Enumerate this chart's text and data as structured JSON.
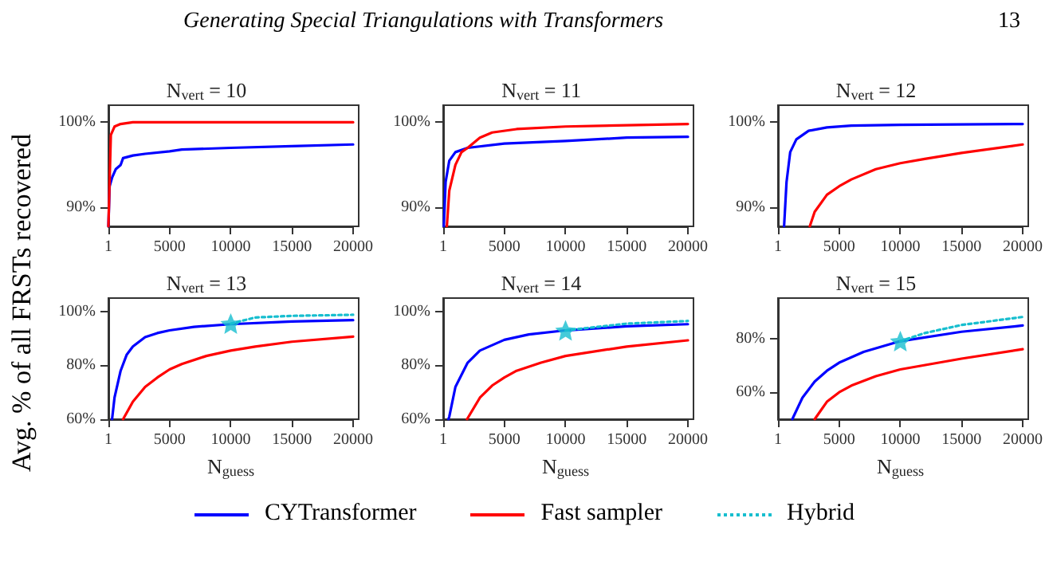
{
  "chart_data": [
    {
      "type": "line",
      "title": "N$_{vert}$ = 10",
      "ylabel": "Avg. % of all FRSTs recovered",
      "annotations": [
        "Generating Special Triangulations with Transformers",
        "13"
      ],
      "legend": "bottom",
      "marker": "none",
      "grid": false,
      "xlim": [
        1,
        20000
      ],
      "xticks": [
        1,
        5000,
        10000,
        15000,
        20000
      ],
      "ylim": [
        87.8,
        102
      ],
      "yticks": [
        {
          "value": 90,
          "label": "90%"
        },
        {
          "value": 100,
          "label": "100%"
        }
      ],
      "series": [
        {
          "name": "CYTransformer",
          "color": "#0000ff",
          "x": [
            1,
            100,
            300,
            600,
            1000,
            1200,
            2000,
            3000,
            5000,
            6000,
            10000,
            15000,
            20000
          ],
          "values": [
            87.8,
            92.5,
            93.5,
            94.5,
            95,
            95.8,
            96.1,
            96.3,
            96.6,
            96.8,
            97,
            97.2,
            97.4
          ]
        },
        {
          "name": "Fast sampler",
          "color": "#ff0000",
          "x": [
            1,
            200,
            500,
            1000,
            2000,
            5000,
            10000,
            20000
          ],
          "values": [
            87.8,
            98.5,
            99.5,
            99.8,
            100,
            100,
            100,
            100
          ]
        }
      ]
    },
    {
      "type": "line",
      "title": "N$_{vert}$ = 11",
      "marker": "none",
      "grid": false,
      "xlim": [
        1,
        20000
      ],
      "xticks": [
        1,
        5000,
        10000,
        15000,
        20000
      ],
      "ylim": [
        87.8,
        102
      ],
      "yticks": [
        {
          "value": 90,
          "label": "90%"
        },
        {
          "value": 100,
          "label": "100%"
        }
      ],
      "series": [
        {
          "name": "CYTransformer",
          "color": "#0000ff",
          "x": [
            50,
            200,
            500,
            1000,
            2000,
            5000,
            10000,
            15000,
            20000
          ],
          "values": [
            87.8,
            93,
            95.5,
            96.5,
            97,
            97.5,
            97.8,
            98.2,
            98.3
          ]
        },
        {
          "name": "Fast sampler",
          "color": "#ff0000",
          "x": [
            300,
            500,
            1000,
            1500,
            2000,
            3000,
            4000,
            6000,
            10000,
            20000
          ],
          "values": [
            87.8,
            92,
            95,
            96.5,
            97,
            98.2,
            98.8,
            99.2,
            99.5,
            99.8
          ]
        }
      ]
    },
    {
      "type": "line",
      "title": "N$_{vert}$ = 12",
      "marker": "none",
      "grid": false,
      "xlim": [
        1,
        20000
      ],
      "xticks": [
        1,
        5000,
        10000,
        15000,
        20000
      ],
      "ylim": [
        87.8,
        102
      ],
      "yticks": [
        {
          "value": 90,
          "label": "90%"
        },
        {
          "value": 100,
          "label": "100%"
        }
      ],
      "series": [
        {
          "name": "CYTransformer",
          "color": "#0000ff",
          "x": [
            500,
            700,
            1000,
            1500,
            2500,
            4000,
            6000,
            10000,
            20000
          ],
          "values": [
            87.8,
            93,
            96.5,
            98,
            99,
            99.4,
            99.6,
            99.7,
            99.8
          ]
        },
        {
          "name": "Fast sampler",
          "color": "#ff0000",
          "x": [
            2600,
            3000,
            4000,
            5000,
            6000,
            8000,
            10000,
            12000,
            15000,
            20000
          ],
          "values": [
            87.8,
            89.5,
            91.5,
            92.5,
            93.3,
            94.5,
            95.2,
            95.7,
            96.4,
            97.4
          ]
        }
      ]
    },
    {
      "type": "line",
      "title": "N$_{vert}$ = 13",
      "xlabel": "N$_{guess}$",
      "marker": "none",
      "grid": false,
      "xlim": [
        1,
        20000
      ],
      "xticks": [
        1,
        5000,
        10000,
        15000,
        20000
      ],
      "ylim": [
        60,
        105
      ],
      "yticks": [
        {
          "value": 60,
          "label": "60%"
        },
        {
          "value": 80,
          "label": "80%"
        },
        {
          "value": 100,
          "label": "100%"
        }
      ],
      "series": [
        {
          "name": "CYTransformer",
          "color": "#0000ff",
          "x": [
            300,
            500,
            1000,
            1500,
            2000,
            3000,
            4000,
            5000,
            7000,
            10000,
            15000,
            20000
          ],
          "values": [
            60,
            68,
            78,
            84,
            87,
            90.5,
            92,
            93,
            94.3,
            95.3,
            96.3,
            96.8
          ]
        },
        {
          "name": "Fast sampler",
          "color": "#ff0000",
          "x": [
            1200,
            2000,
            3000,
            4000,
            5000,
            6000,
            8000,
            10000,
            12000,
            15000,
            20000
          ],
          "values": [
            60,
            66.5,
            72,
            75.5,
            78.5,
            80.5,
            83.5,
            85.5,
            87,
            88.8,
            90.7
          ]
        },
        {
          "name": "Hybrid",
          "color": "#17becf",
          "line_style": "dotted",
          "x": [
            10000,
            12000,
            15000,
            20000
          ],
          "values": [
            95.5,
            97.8,
            98.4,
            98.8
          ]
        },
        {
          "type": "scatter",
          "marker": "star",
          "color": "#17becf",
          "x": [
            10000
          ],
          "values": [
            95.5
          ]
        }
      ]
    },
    {
      "type": "line",
      "title": "N$_{vert}$ = 14",
      "xlabel": "N$_{guess}$",
      "marker": "none",
      "grid": false,
      "xlim": [
        1,
        20000
      ],
      "xticks": [
        1,
        5000,
        10000,
        15000,
        20000
      ],
      "ylim": [
        60,
        105
      ],
      "yticks": [
        {
          "value": 60,
          "label": "60%"
        },
        {
          "value": 80,
          "label": "80%"
        },
        {
          "value": 100,
          "label": "100%"
        }
      ],
      "series": [
        {
          "name": "CYTransformer",
          "color": "#0000ff",
          "x": [
            430,
            500,
            1000,
            2000,
            3000,
            5000,
            7000,
            10000,
            15000,
            20000
          ],
          "values": [
            60,
            61,
            72,
            81,
            85.5,
            89.5,
            91.5,
            93,
            94.5,
            95.3
          ]
        },
        {
          "name": "Fast sampler",
          "color": "#ff0000",
          "x": [
            1950,
            3000,
            4000,
            5000,
            6000,
            8000,
            10000,
            15000,
            20000
          ],
          "values": [
            60,
            68,
            72.5,
            75.5,
            78,
            81,
            83.5,
            87,
            89.3
          ]
        },
        {
          "name": "Hybrid",
          "color": "#17becf",
          "line_style": "dotted",
          "x": [
            10000,
            15000,
            20000
          ],
          "values": [
            93,
            95.5,
            96.5
          ]
        },
        {
          "type": "scatter",
          "marker": "star",
          "color": "#17becf",
          "x": [
            10000
          ],
          "values": [
            93
          ]
        }
      ]
    },
    {
      "type": "line",
      "title": "N$_{vert}$ = 15",
      "xlabel": "N$_{guess}$",
      "marker": "none",
      "grid": false,
      "xlim": [
        1,
        20000
      ],
      "xticks": [
        1,
        5000,
        10000,
        15000,
        20000
      ],
      "ylim": [
        50,
        95
      ],
      "yticks": [
        {
          "value": 60,
          "label": "60%"
        },
        {
          "value": 80,
          "label": "80%"
        }
      ],
      "series": [
        {
          "name": "CYTransformer",
          "color": "#0000ff",
          "x": [
            1170,
            2000,
            3000,
            4000,
            5000,
            7000,
            10000,
            15000,
            20000
          ],
          "values": [
            50,
            58,
            64,
            68,
            71,
            75,
            79,
            82.5,
            84.8
          ]
        },
        {
          "name": "Fast sampler",
          "color": "#ff0000",
          "x": [
            3000,
            4000,
            5000,
            6000,
            8000,
            10000,
            15000,
            20000
          ],
          "values": [
            50,
            56.5,
            60,
            62.5,
            66,
            68.5,
            72.5,
            76
          ]
        },
        {
          "name": "Hybrid",
          "color": "#17becf",
          "line_style": "dotted",
          "x": [
            10000,
            12000,
            15000,
            20000
          ],
          "values": [
            79,
            82,
            85,
            88
          ]
        },
        {
          "type": "scatter",
          "marker": "star",
          "color": "#17becf",
          "x": [
            10000
          ],
          "values": [
            79
          ]
        }
      ]
    }
  ]
}
